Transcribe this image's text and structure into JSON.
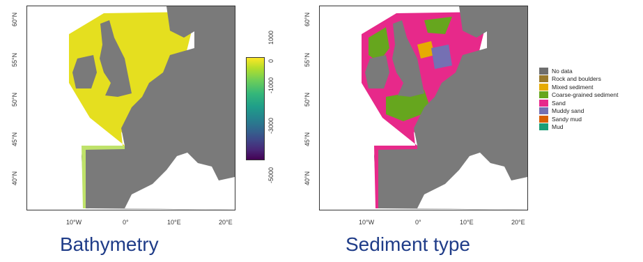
{
  "panels": [
    {
      "caption": "Bathymetry",
      "x_ticks": [
        "10°W",
        "0°",
        "10°E",
        "20°E"
      ],
      "y_ticks": [
        "60°N",
        "55°N",
        "50°N",
        "45°N",
        "40°N"
      ]
    },
    {
      "caption": "Sediment type",
      "x_ticks": [
        "10°W",
        "0°",
        "10°E",
        "20°E"
      ],
      "y_ticks": [
        "60°N",
        "55°N",
        "50°N",
        "45°N",
        "40°N"
      ]
    }
  ],
  "colorbar": {
    "ticks": [
      "1000",
      "0",
      "-1000",
      "-3000",
      "-5000"
    ],
    "colors": [
      "#fde725",
      "#b5de2b",
      "#6ece58",
      "#35b779",
      "#1f9e89",
      "#26828e",
      "#31688e",
      "#3e4989",
      "#482878",
      "#440154"
    ]
  },
  "legend": [
    {
      "label": "No data",
      "color": "#6e6e6e"
    },
    {
      "label": "Rock and boulders",
      "color": "#9a7a2c"
    },
    {
      "label": "Mixed sediment",
      "color": "#e6ab02"
    },
    {
      "label": "Coarse-grained sediment",
      "color": "#66a61e"
    },
    {
      "label": "Sand",
      "color": "#e7298a"
    },
    {
      "label": "Muddy sand",
      "color": "#7570b3"
    },
    {
      "label": "Sandy mud",
      "color": "#d95f02"
    },
    {
      "label": "Mud",
      "color": "#1b9e77"
    }
  ],
  "colors": {
    "land": "#7a7a7a",
    "shallow": "#e8e21c",
    "caption": "#1f3c88"
  }
}
